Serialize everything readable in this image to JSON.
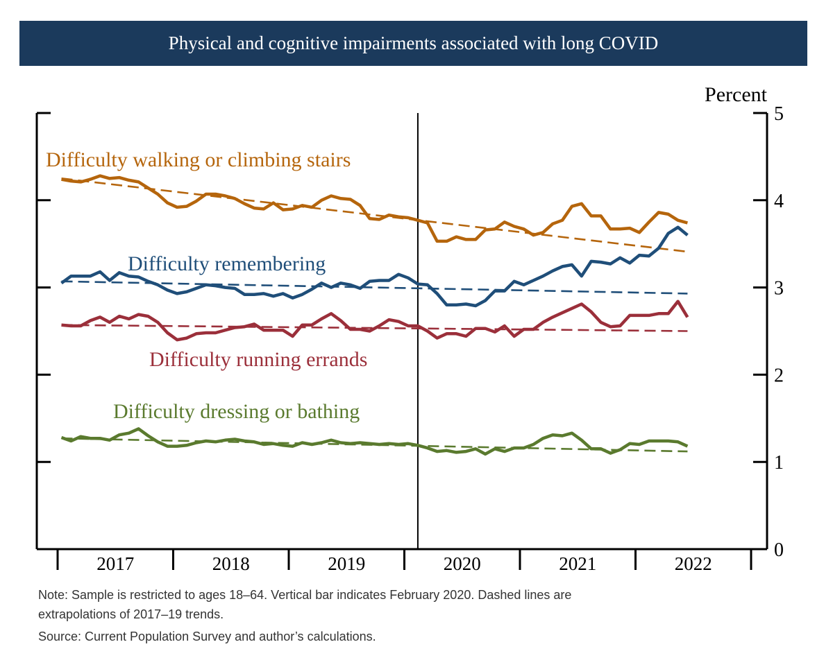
{
  "chart_data": {
    "type": "line",
    "title": "Physical and cognitive impairments associated with long COVID",
    "ylabel": "Percent",
    "ylim": [
      0,
      5
    ],
    "yticks": [
      0,
      1,
      2,
      3,
      4,
      5
    ],
    "xlim": [
      "2017-01",
      "2022-12"
    ],
    "xtick_labels": [
      "2017",
      "2018",
      "2019",
      "2020",
      "2021",
      "2022"
    ],
    "grid": false,
    "vertical_marker": {
      "date": "2020-02"
    },
    "start": "2017-01",
    "end": "2022-06",
    "series": [
      {
        "name": "Difficulty walking or climbing stairs",
        "color": "#b5650c",
        "values": [
          4.24,
          4.22,
          4.21,
          4.24,
          4.28,
          4.25,
          4.26,
          4.23,
          4.21,
          4.14,
          4.07,
          3.97,
          3.92,
          3.93,
          3.99,
          4.07,
          4.07,
          4.05,
          4.02,
          3.96,
          3.91,
          3.9,
          3.97,
          3.89,
          3.9,
          3.94,
          3.92,
          4.0,
          4.05,
          4.02,
          4.01,
          3.94,
          3.79,
          3.78,
          3.83,
          3.81,
          3.8,
          3.77,
          3.74,
          3.53,
          3.53,
          3.58,
          3.55,
          3.55,
          3.66,
          3.67,
          3.75,
          3.7,
          3.67,
          3.6,
          3.63,
          3.73,
          3.77,
          3.93,
          3.96,
          3.82,
          3.82,
          3.67,
          3.67,
          3.68,
          3.63,
          3.75,
          3.86,
          3.84,
          3.77,
          3.74
        ],
        "trend": [
          4.25,
          3.41
        ]
      },
      {
        "name": "Difficulty remembering",
        "color": "#1f4e79",
        "values": [
          3.05,
          3.13,
          3.13,
          3.13,
          3.18,
          3.08,
          3.17,
          3.13,
          3.12,
          3.07,
          3.03,
          2.97,
          2.93,
          2.95,
          2.99,
          3.03,
          3.02,
          3.0,
          2.99,
          2.92,
          2.92,
          2.93,
          2.9,
          2.93,
          2.88,
          2.92,
          2.98,
          3.05,
          3.0,
          3.05,
          3.03,
          2.99,
          3.07,
          3.08,
          3.08,
          3.15,
          3.11,
          3.04,
          3.03,
          2.93,
          2.8,
          2.8,
          2.81,
          2.79,
          2.85,
          2.96,
          2.96,
          3.07,
          3.03,
          3.08,
          3.13,
          3.19,
          3.24,
          3.26,
          3.13,
          3.3,
          3.29,
          3.27,
          3.34,
          3.28,
          3.37,
          3.36,
          3.45,
          3.62,
          3.69,
          3.6
        ],
        "trend": [
          3.07,
          2.93
        ]
      },
      {
        "name": "Difficulty running errands",
        "color": "#9b2f3a",
        "values": [
          2.57,
          2.56,
          2.56,
          2.62,
          2.66,
          2.6,
          2.67,
          2.64,
          2.69,
          2.67,
          2.6,
          2.48,
          2.4,
          2.42,
          2.47,
          2.48,
          2.48,
          2.51,
          2.54,
          2.55,
          2.58,
          2.51,
          2.51,
          2.51,
          2.44,
          2.57,
          2.57,
          2.64,
          2.7,
          2.62,
          2.52,
          2.52,
          2.5,
          2.56,
          2.63,
          2.61,
          2.56,
          2.56,
          2.5,
          2.42,
          2.47,
          2.47,
          2.44,
          2.53,
          2.53,
          2.49,
          2.56,
          2.44,
          2.52,
          2.52,
          2.6,
          2.66,
          2.71,
          2.76,
          2.81,
          2.72,
          2.6,
          2.55,
          2.56,
          2.68,
          2.68,
          2.68,
          2.7,
          2.7,
          2.84,
          2.66
        ],
        "trend": [
          2.57,
          2.5
        ]
      },
      {
        "name": "Difficulty dressing or bathing",
        "color": "#5a7a2e",
        "values": [
          1.28,
          1.24,
          1.29,
          1.27,
          1.27,
          1.25,
          1.31,
          1.33,
          1.38,
          1.3,
          1.23,
          1.18,
          1.18,
          1.19,
          1.22,
          1.24,
          1.23,
          1.25,
          1.26,
          1.24,
          1.23,
          1.2,
          1.21,
          1.19,
          1.18,
          1.22,
          1.2,
          1.22,
          1.25,
          1.22,
          1.21,
          1.22,
          1.21,
          1.2,
          1.21,
          1.2,
          1.21,
          1.19,
          1.16,
          1.12,
          1.13,
          1.11,
          1.12,
          1.15,
          1.09,
          1.15,
          1.12,
          1.16,
          1.16,
          1.2,
          1.27,
          1.31,
          1.3,
          1.33,
          1.25,
          1.15,
          1.15,
          1.1,
          1.14,
          1.21,
          1.2,
          1.24,
          1.24,
          1.24,
          1.23,
          1.18
        ],
        "trend": [
          1.27,
          1.12
        ]
      }
    ]
  },
  "notes": {
    "line1": "Note: Sample is restricted to ages 18–64. Vertical bar indicates February 2020. Dashed lines are",
    "line2": "extrapolations of 2017–19 trends.",
    "line3": "Source: Current Population Survey and author’s calculations."
  }
}
